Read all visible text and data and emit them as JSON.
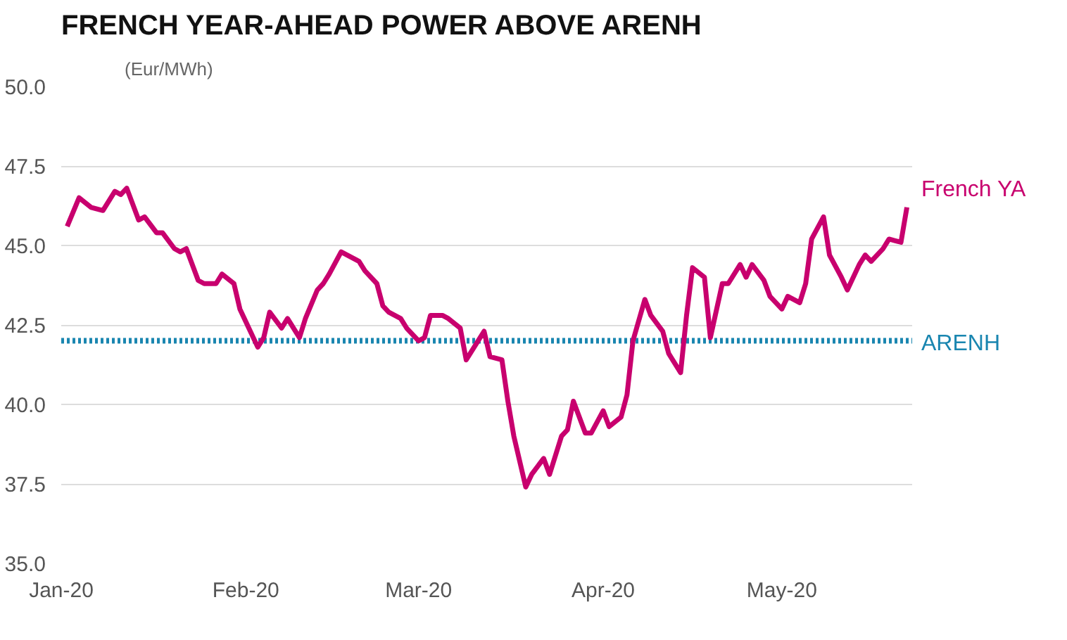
{
  "chart_data": {
    "type": "line",
    "title": "FRENCH YEAR-AHEAD POWER ABOVE ARENH",
    "ylabel": "(Eur/MWh)",
    "x": [
      "2020-01-02",
      "2020-01-04",
      "2020-01-06",
      "2020-01-08",
      "2020-01-10",
      "2020-01-11",
      "2020-01-12",
      "2020-01-14",
      "2020-01-15",
      "2020-01-17",
      "2020-01-18",
      "2020-01-20",
      "2020-01-21",
      "2020-01-22",
      "2020-01-24",
      "2020-01-25",
      "2020-01-27",
      "2020-01-28",
      "2020-01-30",
      "2020-01-31",
      "2020-02-01",
      "2020-02-03",
      "2020-02-04",
      "2020-02-05",
      "2020-02-07",
      "2020-02-08",
      "2020-02-10",
      "2020-02-11",
      "2020-02-13",
      "2020-02-14",
      "2020-02-15",
      "2020-02-17",
      "2020-02-18",
      "2020-02-20",
      "2020-02-21",
      "2020-02-23",
      "2020-02-24",
      "2020-02-25",
      "2020-02-27",
      "2020-02-28",
      "2020-03-01",
      "2020-03-02",
      "2020-03-03",
      "2020-03-05",
      "2020-03-06",
      "2020-03-08",
      "2020-03-09",
      "2020-03-11",
      "2020-03-12",
      "2020-03-13",
      "2020-03-15",
      "2020-03-16",
      "2020-03-17",
      "2020-03-19",
      "2020-03-20",
      "2020-03-22",
      "2020-03-23",
      "2020-03-25",
      "2020-03-26",
      "2020-03-27",
      "2020-03-29",
      "2020-03-30",
      "2020-04-01",
      "2020-04-02",
      "2020-04-04",
      "2020-04-05",
      "2020-04-06",
      "2020-04-08",
      "2020-04-09",
      "2020-04-11",
      "2020-04-12",
      "2020-04-14",
      "2020-04-15",
      "2020-04-16",
      "2020-04-18",
      "2020-04-19",
      "2020-04-21",
      "2020-04-22",
      "2020-04-24",
      "2020-04-25",
      "2020-04-26",
      "2020-04-28",
      "2020-04-29",
      "2020-05-01",
      "2020-05-02",
      "2020-05-04",
      "2020-05-05",
      "2020-05-06",
      "2020-05-08",
      "2020-05-09",
      "2020-05-11",
      "2020-05-12",
      "2020-05-14",
      "2020-05-15",
      "2020-05-16",
      "2020-05-18",
      "2020-05-19",
      "2020-05-21",
      "2020-05-22"
    ],
    "series": [
      {
        "name": "French YA",
        "color": "#c8006e",
        "values": [
          45.6,
          46.5,
          46.2,
          46.1,
          46.7,
          46.6,
          46.8,
          45.8,
          45.9,
          45.4,
          45.4,
          44.9,
          44.8,
          44.9,
          43.9,
          43.8,
          43.8,
          44.1,
          43.8,
          43.0,
          42.6,
          41.8,
          42.1,
          42.9,
          42.4,
          42.7,
          42.1,
          42.7,
          43.6,
          43.8,
          44.1,
          44.8,
          44.7,
          44.5,
          44.2,
          43.8,
          43.1,
          42.9,
          42.7,
          42.4,
          42.0,
          42.1,
          42.8,
          42.8,
          42.7,
          42.4,
          41.4,
          42.0,
          42.3,
          41.5,
          41.4,
          40.1,
          39.0,
          37.4,
          37.8,
          38.3,
          37.8,
          39.0,
          39.2,
          40.1,
          39.1,
          39.1,
          39.8,
          39.3,
          39.6,
          40.3,
          42.0,
          43.3,
          42.8,
          42.3,
          41.6,
          41.0,
          42.8,
          44.3,
          44.0,
          42.1,
          43.8,
          43.8,
          44.4,
          44.0,
          44.4,
          43.9,
          43.4,
          43.0,
          43.4,
          43.2,
          43.8,
          45.2,
          45.9,
          44.7,
          44.0,
          43.6,
          44.4,
          44.7,
          44.5,
          44.9,
          45.2,
          45.1,
          46.2
        ]
      }
    ],
    "ref_lines": [
      {
        "axis": "y",
        "value": 42.0,
        "label": "ARENH",
        "color": "#1a86b0",
        "line_style": "dotted"
      }
    ],
    "xlim": [
      "2020-01-01",
      "2020-05-23"
    ],
    "xticks": [
      {
        "value": "2020-01-01",
        "label": "Jan-20"
      },
      {
        "value": "2020-02-01",
        "label": "Feb-20"
      },
      {
        "value": "2020-03-01",
        "label": "Mar-20"
      },
      {
        "value": "2020-04-01",
        "label": "Apr-20"
      },
      {
        "value": "2020-05-01",
        "label": "May-20"
      }
    ],
    "ylim": [
      35,
      50
    ],
    "yticks": [
      {
        "value": 35,
        "label": "35.0"
      },
      {
        "value": 37.5,
        "label": "37.5"
      },
      {
        "value": 40,
        "label": "40.0"
      },
      {
        "value": 42.5,
        "label": "42.5"
      },
      {
        "value": 45,
        "label": "45.0"
      },
      {
        "value": 47.5,
        "label": "47.5"
      },
      {
        "value": 50,
        "label": "50.0"
      }
    ],
    "grid": "y",
    "marker": "none",
    "line_style": "solid"
  }
}
